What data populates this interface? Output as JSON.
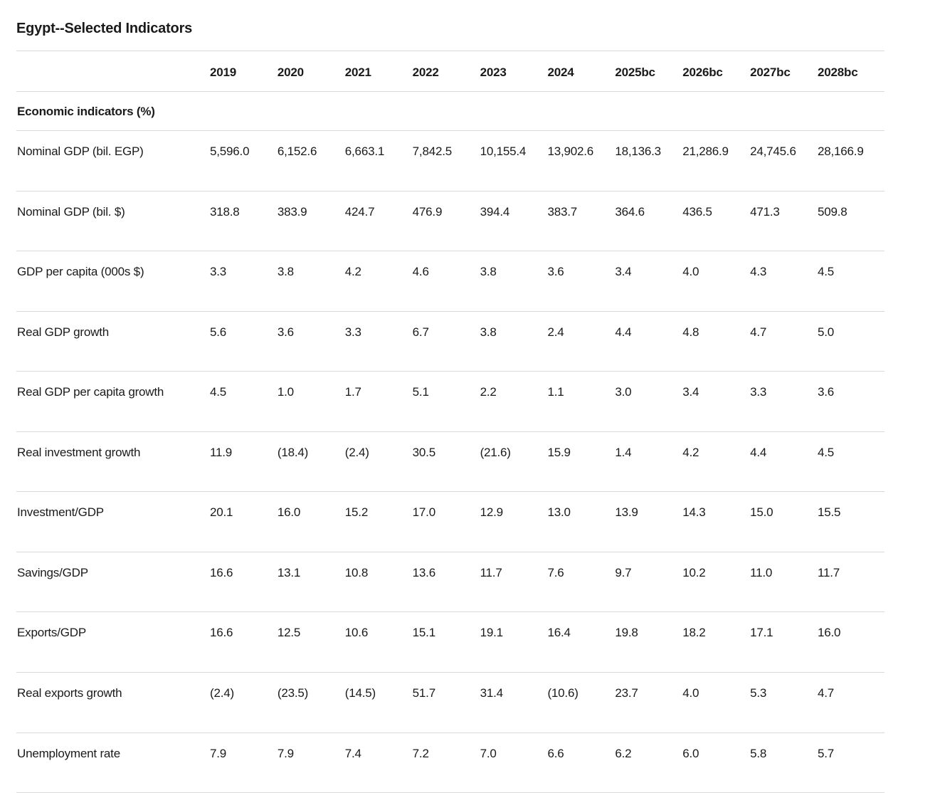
{
  "title": "Egypt--Selected Indicators",
  "colors": {
    "text": "#1a1a1a",
    "border": "#d9d9d9",
    "background": "#ffffff"
  },
  "chart_data": {
    "type": "table",
    "title": "Egypt--Selected Indicators",
    "section": "Economic indicators (%)",
    "columns": [
      "2019",
      "2020",
      "2021",
      "2022",
      "2023",
      "2024",
      "2025bc",
      "2026bc",
      "2027bc",
      "2028bc"
    ],
    "rows": [
      {
        "label": "Nominal GDP (bil. EGP)",
        "values": [
          "5,596.0",
          "6,152.6",
          "6,663.1",
          "7,842.5",
          "10,155.4",
          "13,902.6",
          "18,136.3",
          "21,286.9",
          "24,745.6",
          "28,166.9"
        ]
      },
      {
        "label": "Nominal GDP (bil. $)",
        "values": [
          "318.8",
          "383.9",
          "424.7",
          "476.9",
          "394.4",
          "383.7",
          "364.6",
          "436.5",
          "471.3",
          "509.8"
        ]
      },
      {
        "label": "GDP per capita (000s $)",
        "values": [
          "3.3",
          "3.8",
          "4.2",
          "4.6",
          "3.8",
          "3.6",
          "3.4",
          "4.0",
          "4.3",
          "4.5"
        ]
      },
      {
        "label": "Real GDP growth",
        "values": [
          "5.6",
          "3.6",
          "3.3",
          "6.7",
          "3.8",
          "2.4",
          "4.4",
          "4.8",
          "4.7",
          "5.0"
        ]
      },
      {
        "label": "Real GDP per capita growth",
        "values": [
          "4.5",
          "1.0",
          "1.7",
          "5.1",
          "2.2",
          "1.1",
          "3.0",
          "3.4",
          "3.3",
          "3.6"
        ]
      },
      {
        "label": "Real investment growth",
        "values": [
          "11.9",
          "(18.4)",
          "(2.4)",
          "30.5",
          "(21.6)",
          "15.9",
          "1.4",
          "4.2",
          "4.4",
          "4.5"
        ]
      },
      {
        "label": "Investment/GDP",
        "values": [
          "20.1",
          "16.0",
          "15.2",
          "17.0",
          "12.9",
          "13.0",
          "13.9",
          "14.3",
          "15.0",
          "15.5"
        ]
      },
      {
        "label": "Savings/GDP",
        "values": [
          "16.6",
          "13.1",
          "10.8",
          "13.6",
          "11.7",
          "7.6",
          "9.7",
          "10.2",
          "11.0",
          "11.7"
        ]
      },
      {
        "label": "Exports/GDP",
        "values": [
          "16.6",
          "12.5",
          "10.6",
          "15.1",
          "19.1",
          "16.4",
          "19.8",
          "18.2",
          "17.1",
          "16.0"
        ]
      },
      {
        "label": "Real exports growth",
        "values": [
          "(2.4)",
          "(23.5)",
          "(14.5)",
          "51.7",
          "31.4",
          "(10.6)",
          "23.7",
          "4.0",
          "5.3",
          "4.7"
        ]
      },
      {
        "label": "Unemployment rate",
        "values": [
          "7.9",
          "7.9",
          "7.4",
          "7.2",
          "7.0",
          "6.6",
          "6.2",
          "6.0",
          "5.8",
          "5.7"
        ]
      }
    ]
  }
}
